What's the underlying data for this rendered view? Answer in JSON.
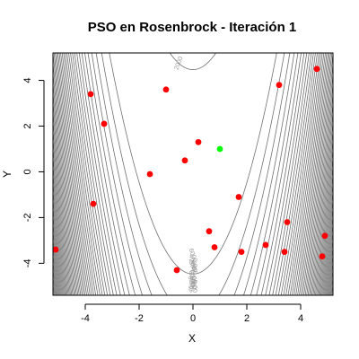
{
  "chart_data": {
    "type": "scatter",
    "title": "PSO en Rosenbrock - Iteración 1",
    "xlabel": "X",
    "ylabel": "Y",
    "xlim": [
      -5.2,
      5.2
    ],
    "ylim": [
      -5.4,
      5.2
    ],
    "xticks": [
      -4,
      -2,
      0,
      2,
      4
    ],
    "yticks": [
      -4,
      -2,
      0,
      2,
      4
    ],
    "xtick_labels": [
      "-4",
      "-2",
      "0",
      "2",
      "4"
    ],
    "ytick_labels": [
      "-4",
      "-2",
      "0",
      "2",
      "4"
    ],
    "grid": false,
    "background": {
      "type": "contour",
      "function": "rosenbrock",
      "levels_start": 2000,
      "levels_step": 2000,
      "labeled_levels": [
        "2000",
        "4000",
        "6000",
        "8000",
        "2000",
        "4000",
        "6000",
        "8000",
        "2000",
        "4000",
        "6000"
      ],
      "line_color": "#707070",
      "label_color": "#9a9a9a"
    },
    "series": [
      {
        "color": "#ff0000",
        "x": [
          -3.8,
          -1.0,
          3.2,
          4.6,
          -3.3,
          0.2,
          -0.3,
          -1.6,
          1.7,
          -3.7,
          0.6,
          0.8,
          3.5,
          4.9,
          -5.1,
          2.7,
          1.8,
          3.4,
          4.8,
          -0.6
        ],
        "y": [
          3.4,
          3.6,
          3.8,
          4.5,
          2.1,
          1.3,
          0.5,
          -0.1,
          -1.1,
          -1.4,
          -2.6,
          -3.3,
          -2.2,
          -2.8,
          -3.4,
          -3.2,
          -3.5,
          -3.5,
          -3.7,
          -4.3
        ]
      },
      {
        "color": "#00ff00",
        "x": [
          1.0
        ],
        "y": [
          1.0
        ]
      }
    ]
  }
}
